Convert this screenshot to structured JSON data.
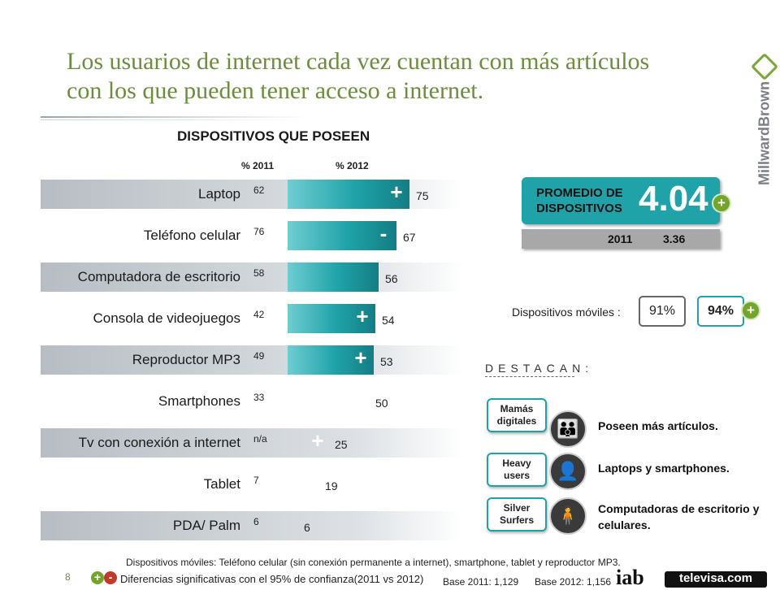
{
  "slide": {
    "title_line1": "Los usuarios de internet cada vez cuentan con más artículos",
    "title_line2": "con los que pueden tener acceso a internet.",
    "brand": "MillwardBrown",
    "page_number": "8"
  },
  "chart_data": {
    "type": "bar",
    "title": "DISPOSITIVOS QUE POSEEN",
    "col_2011_label": "% 2011",
    "col_2012_label": "% 2012",
    "categories": [
      "Laptop",
      "Teléfono celular",
      "Computadora de escritorio",
      "Consola de videojuegos",
      "Reproductor MP3",
      "Smartphones",
      "Tv con conexión a internet",
      "Tablet",
      "PDA/ Palm"
    ],
    "series": [
      {
        "values": [
          62,
          76,
          58,
          42,
          49,
          33,
          null,
          7,
          6
        ]
      },
      {
        "values": [
          75,
          67,
          56,
          54,
          53,
          50,
          25,
          19,
          6
        ]
      }
    ],
    "labels_2011": [
      "62",
      "76",
      "58",
      "42",
      "49",
      "33",
      "n/a",
      "7",
      "6"
    ],
    "labels_2012": [
      "75",
      "67",
      "56",
      "54",
      "53",
      "50",
      "25",
      "19",
      "6"
    ],
    "significance": [
      "+",
      "-",
      "",
      "+",
      "+",
      "",
      "+",
      "",
      ""
    ],
    "ylim": [
      0,
      100
    ],
    "colors": {
      "bar_2012": "#1fa3a9",
      "shade": "#c3c8cd"
    }
  },
  "promedio": {
    "label": "PROMEDIO DE DISPOSITIVOS",
    "value": "4.04",
    "year_2011": "2011",
    "value_2011": "3.36",
    "plus": "+"
  },
  "moviles": {
    "label": "Dispositivos móviles :",
    "v2011": "91%",
    "v2012": "94%",
    "plus": "+"
  },
  "destacan": {
    "heading": "DESTACAN:",
    "items": [
      {
        "tag": "Mamás digitales",
        "text": "Poseen más artículos.",
        "icon": "mother-child-icon"
      },
      {
        "tag": "Heavy users",
        "text": "Laptops y smartphones.",
        "icon": "heavy-user-icon"
      },
      {
        "tag": "Silver Surfers",
        "text": "Computadoras de escritorio y celulares.",
        "icon": "senior-user-icon"
      }
    ]
  },
  "footer": {
    "note": "Dispositivos móviles: Teléfono celular (sin conexión permanente a internet), smartphone, tablet y reproductor MP3.",
    "legend": "Diferencias significativas con  el 95% de confianza(2011 vs 2012)",
    "base_2011": "Base 2011: 1,129",
    "base_2012": "Base 2012: 1,156",
    "logo_iab": "iab",
    "logo_televisa": "televisa.com",
    "plus": "+",
    "minus": "-"
  }
}
